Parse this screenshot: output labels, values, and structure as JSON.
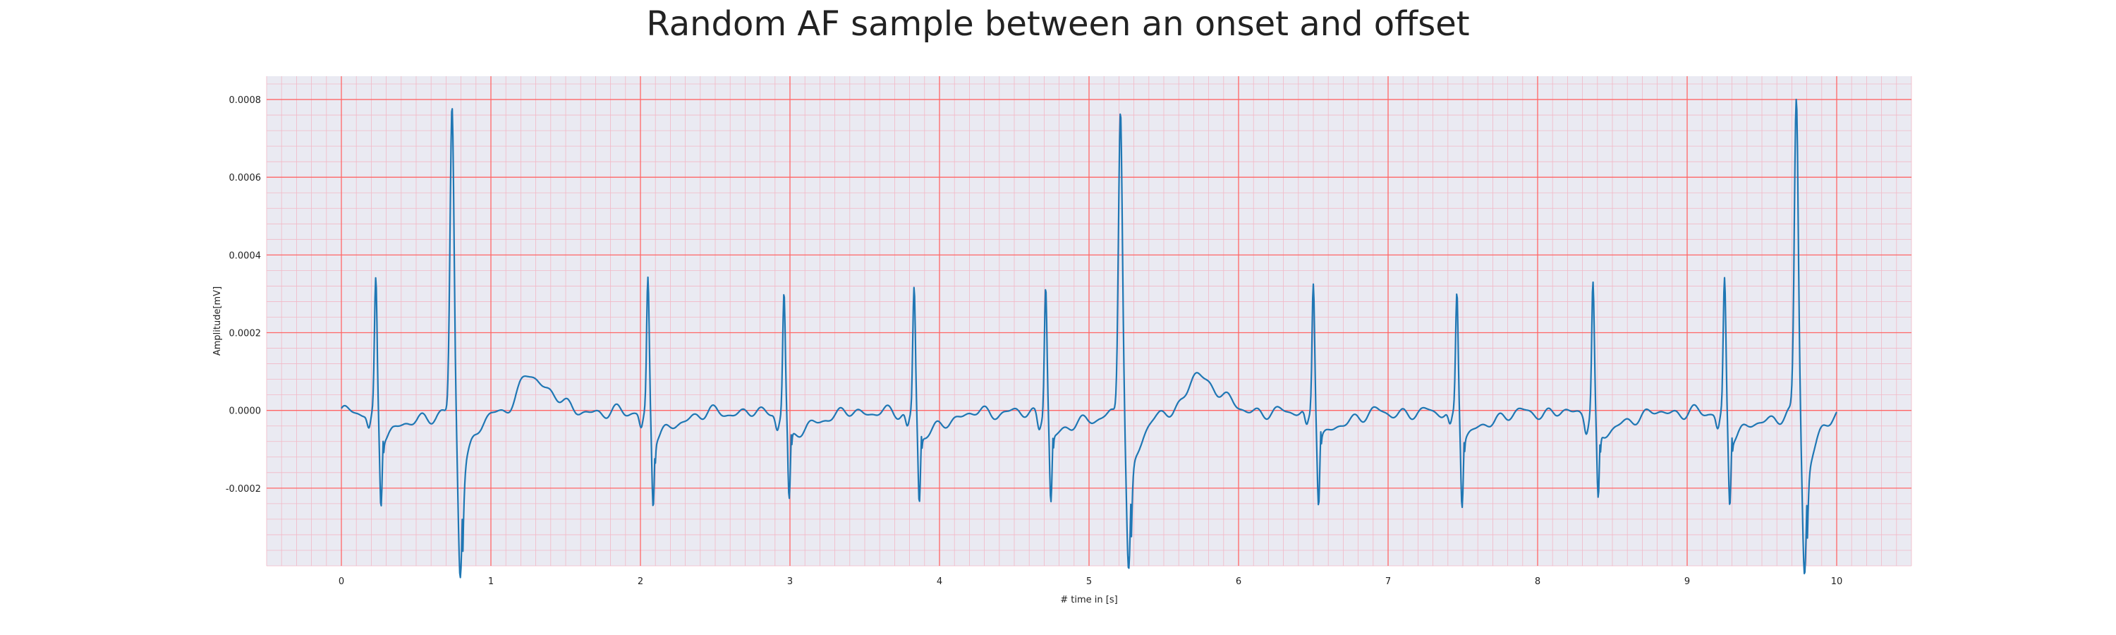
{
  "chart_data": {
    "type": "line",
    "title": "Random AF sample between an onset and offset",
    "xlabel": "# time in [s]",
    "ylabel": "Amplitude[mV]",
    "xlim": [
      -0.5,
      10.5
    ],
    "ylim": [
      -0.0004,
      0.00086
    ],
    "x_ticks": [
      0,
      1,
      2,
      3,
      4,
      5,
      6,
      7,
      8,
      9,
      10
    ],
    "x_tick_labels": [
      "0",
      "1",
      "2",
      "3",
      "4",
      "5",
      "6",
      "7",
      "8",
      "9",
      "10"
    ],
    "y_ticks": [
      -0.0002,
      0.0,
      0.0002,
      0.0004,
      0.0006,
      0.0008
    ],
    "y_tick_labels": [
      "-0.0002",
      "0.0000",
      "0.0002",
      "0.0004",
      "0.0006",
      "0.0008"
    ],
    "grid": true,
    "minor_grid": true,
    "legend": "none",
    "colors": {
      "plot_background": "#eaeaf2",
      "major_grid": "#ff6666",
      "minor_grid": "#f2b8c6",
      "line": "#1f77b4",
      "text": "#222222"
    },
    "series": [
      {
        "beats": [
          {
            "t": 0.23,
            "amp": 0.00034,
            "kind": "normal"
          },
          {
            "t": 0.74,
            "amp": 0.00079,
            "kind": "ectopic"
          },
          {
            "t": 2.05,
            "amp": 0.000345,
            "kind": "normal"
          },
          {
            "t": 2.96,
            "amp": 0.000315,
            "kind": "normal"
          },
          {
            "t": 3.83,
            "amp": 0.000325,
            "kind": "normal"
          },
          {
            "t": 4.71,
            "amp": 0.000335,
            "kind": "normal"
          },
          {
            "t": 5.21,
            "amp": 0.00079,
            "kind": "ectopic"
          },
          {
            "t": 6.5,
            "amp": 0.000345,
            "kind": "normal"
          },
          {
            "t": 7.46,
            "amp": 0.000315,
            "kind": "normal"
          },
          {
            "t": 8.37,
            "amp": 0.000335,
            "kind": "normal"
          },
          {
            "t": 9.25,
            "amp": 0.00034,
            "kind": "normal"
          },
          {
            "t": 9.73,
            "amp": 0.000805,
            "kind": "ectopic"
          }
        ],
        "x_start": 0,
        "x_end": 10
      }
    ]
  }
}
